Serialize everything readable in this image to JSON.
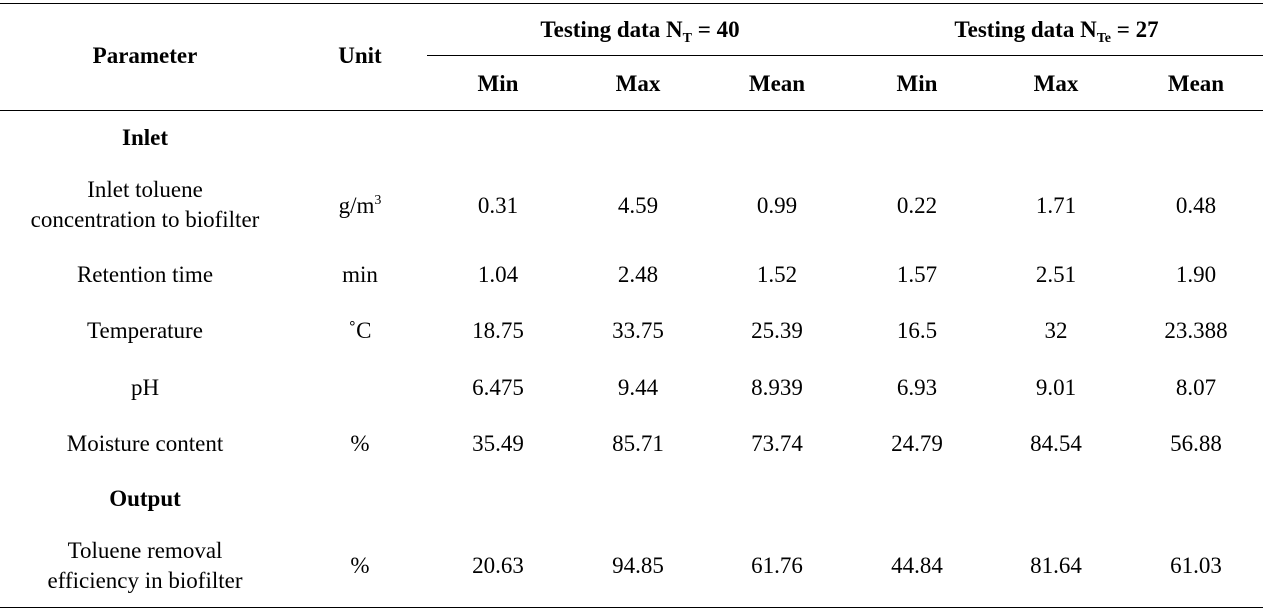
{
  "table": {
    "header": {
      "parameter": "Parameter",
      "unit": "Unit",
      "group1_prefix": "Testing data N",
      "group1_sub": "T",
      "group1_suffix": " = 40",
      "group2_prefix": "Testing data N",
      "group2_sub": "Te",
      "group2_suffix": " = 27",
      "min": "Min",
      "max": "Max",
      "mean": "Mean"
    },
    "sections": {
      "inlet": "Inlet",
      "output": "Output"
    },
    "rows": [
      {
        "param_line1": "Inlet toluene",
        "param_line2": "concentration to biofilter",
        "unit_base": "g/m",
        "unit_sup": "3",
        "values": [
          "0.31",
          "4.59",
          "0.99",
          "0.22",
          "1.71",
          "0.48"
        ]
      },
      {
        "param": "Retention time",
        "unit": "min",
        "values": [
          "1.04",
          "2.48",
          "1.52",
          "1.57",
          "2.51",
          "1.90"
        ]
      },
      {
        "param": "Temperature",
        "unit": "˚C",
        "values": [
          "18.75",
          "33.75",
          "25.39",
          "16.5",
          "32",
          "23.388"
        ]
      },
      {
        "param": "pH",
        "unit": "",
        "values": [
          "6.475",
          "9.44",
          "8.939",
          "6.93",
          "9.01",
          "8.07"
        ]
      },
      {
        "param": "Moisture content",
        "unit": "%",
        "values": [
          "35.49",
          "85.71",
          "73.74",
          "24.79",
          "84.54",
          "56.88"
        ]
      },
      {
        "param_line1": "Toluene removal",
        "param_line2": "efficiency in biofilter",
        "unit": "%",
        "values": [
          "20.63",
          "94.85",
          "61.76",
          "44.84",
          "81.64",
          "61.03"
        ]
      }
    ]
  }
}
